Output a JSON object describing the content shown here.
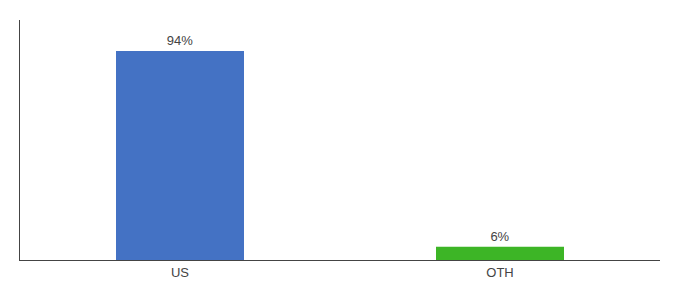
{
  "chart_data": {
    "type": "bar",
    "categories": [
      "US",
      "OTH"
    ],
    "values": [
      94,
      6
    ],
    "value_labels": [
      "94%",
      "6%"
    ],
    "colors": [
      "#4472C4",
      "#3DB526"
    ],
    "ylim": [
      0,
      108
    ],
    "data_labels": true,
    "tick_labels": "x",
    "grid": false
  }
}
